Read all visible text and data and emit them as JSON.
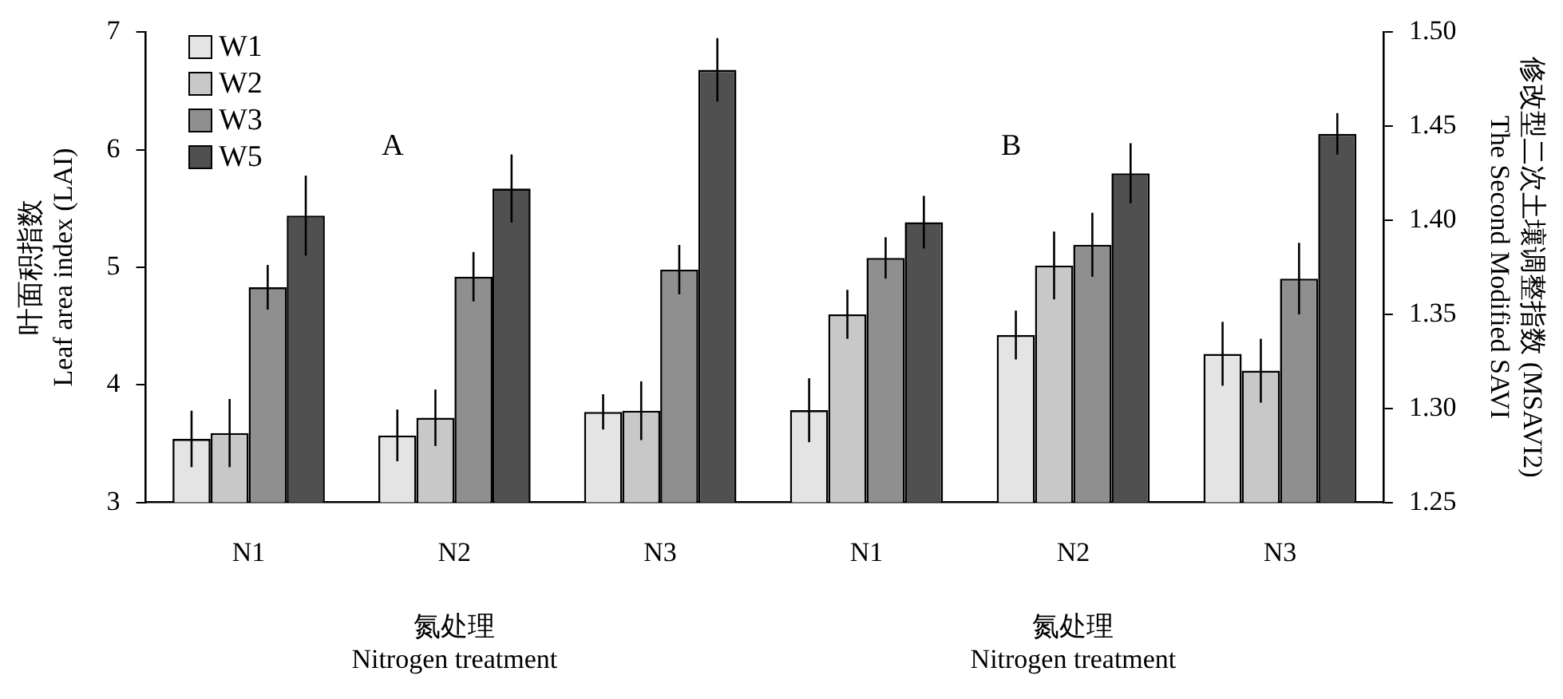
{
  "chart_data": [
    {
      "type": "bar",
      "categories": [
        "N1",
        "N2",
        "N3"
      ],
      "xlabel": "氮处理\nNitrogen treatment",
      "ylabel": "叶面积指数\nLeaf area index (LAI)",
      "ylim": [
        3,
        7
      ],
      "yticks": [
        3,
        4,
        5,
        6,
        7
      ],
      "legend": "top left",
      "annotations": [
        "A"
      ],
      "series": [
        {
          "name": "W1",
          "color": "#e4e4e4",
          "values": [
            3.54,
            3.57,
            3.77
          ],
          "errors": [
            0.24,
            0.22,
            0.15
          ]
        },
        {
          "name": "W2",
          "color": "#c8c8c8",
          "values": [
            3.59,
            3.72,
            3.78
          ],
          "errors": [
            0.29,
            0.24,
            0.25
          ]
        },
        {
          "name": "W3",
          "color": "#8f8f8f",
          "values": [
            4.83,
            4.92,
            4.98
          ],
          "errors": [
            0.19,
            0.21,
            0.21
          ]
        },
        {
          "name": "W5",
          "color": "#505050",
          "values": [
            5.44,
            5.67,
            6.68
          ],
          "errors": [
            0.34,
            0.29,
            0.27
          ]
        }
      ]
    },
    {
      "type": "bar",
      "categories": [
        "N1",
        "N2",
        "N3"
      ],
      "xlabel": "氮处理\nNitrogen treatment",
      "y2label": "修改型二次土壤调整指数 (MSAVI2)\nThe Second Modified SAVI",
      "y2lim": [
        1.25,
        1.5
      ],
      "y2ticks": [
        {
          "value": 1.25,
          "label": "1.25"
        },
        {
          "value": 1.3,
          "label": "1.30"
        },
        {
          "value": 1.35,
          "label": "1.35"
        },
        {
          "value": 1.4,
          "label": "1.40"
        },
        {
          "value": 1.45,
          "label": "1.45"
        },
        {
          "value": 1.5,
          "label": "1.50"
        }
      ],
      "annotations": [
        "B"
      ],
      "series": [
        {
          "color": "#e4e4e4",
          "axis": "y2",
          "values": [
            1.299,
            1.339,
            1.329
          ],
          "errors": [
            0.017,
            0.013,
            0.017
          ]
        },
        {
          "color": "#c8c8c8",
          "axis": "y2",
          "values": [
            1.35,
            1.376,
            1.32
          ],
          "errors": [
            0.013,
            0.018,
            0.017
          ]
        },
        {
          "color": "#8f8f8f",
          "axis": "y2",
          "values": [
            1.38,
            1.387,
            1.369
          ],
          "errors": [
            0.011,
            0.017,
            0.019
          ]
        },
        {
          "color": "#505050",
          "axis": "y2",
          "values": [
            1.399,
            1.425,
            1.446
          ],
          "errors": [
            0.014,
            0.016,
            0.011
          ]
        }
      ]
    }
  ]
}
